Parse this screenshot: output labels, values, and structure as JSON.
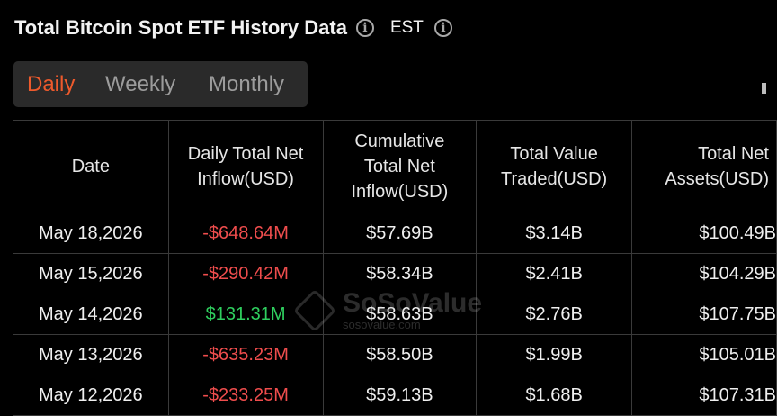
{
  "header": {
    "title": "Total Bitcoin Spot ETF History Data",
    "timezone": "EST",
    "info_glyph": "i"
  },
  "tabs": [
    {
      "label": "Daily",
      "active": true
    },
    {
      "label": "Weekly",
      "active": false
    },
    {
      "label": "Monthly",
      "active": false
    }
  ],
  "colors": {
    "accent": "#ee5a2c",
    "negative": "#ef4d4d",
    "positive": "#2fcf5f",
    "background": "#000000"
  },
  "table": {
    "headers": [
      "Date",
      "Daily Total Net Inflow(USD)",
      "Cumulative Total Net Inflow(USD)",
      "Total Value Traded(USD)",
      "Total Net Assets(USD)"
    ],
    "rows": [
      {
        "date": "May 18,2026",
        "daily": "-$648.64M",
        "cumulative": "$57.69B",
        "traded": "$3.14B",
        "assets": "$100.49B"
      },
      {
        "date": "May 15,2026",
        "daily": "-$290.42M",
        "cumulative": "$58.34B",
        "traded": "$2.41B",
        "assets": "$104.29B"
      },
      {
        "date": "May 14,2026",
        "daily": "$131.31M",
        "cumulative": "$58.63B",
        "traded": "$2.76B",
        "assets": "$107.75B"
      },
      {
        "date": "May 13,2026",
        "daily": "-$635.23M",
        "cumulative": "$58.50B",
        "traded": "$1.99B",
        "assets": "$105.01B"
      },
      {
        "date": "May 12,2026",
        "daily": "-$233.25M",
        "cumulative": "$59.13B",
        "traded": "$1.68B",
        "assets": "$107.31B"
      }
    ]
  },
  "watermark": {
    "name": "SoSoValue",
    "url": "sosovalue.com"
  }
}
